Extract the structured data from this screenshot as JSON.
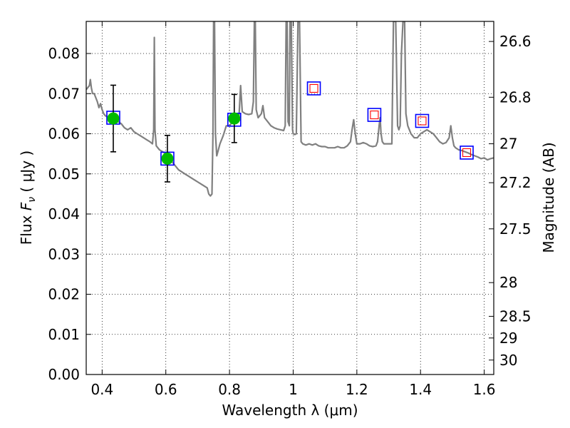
{
  "chart_data": {
    "type": "scatter",
    "title": "",
    "xlabel": "Wavelength  λ (μm)",
    "ylabel": "Flux  F_ν  ( μJy )",
    "ylabel_parts": {
      "prefix": "Flux  ",
      "symbol": "F",
      "subscript": "ν",
      "suffix": "  ( μJy )"
    },
    "ylabel_right": "Magnitude (AB)",
    "xlim": [
      0.35,
      1.63
    ],
    "ylim": [
      0.0,
      0.088
    ],
    "grid": true,
    "grid_style": "dotted",
    "x_ticks": [
      {
        "value": 0.4,
        "label": "0.4"
      },
      {
        "value": 0.6,
        "label": "0.6"
      },
      {
        "value": 0.8,
        "label": "0.8"
      },
      {
        "value": 1.0,
        "label": "1"
      },
      {
        "value": 1.2,
        "label": "1.2"
      },
      {
        "value": 1.4,
        "label": "1.4"
      },
      {
        "value": 1.6,
        "label": "1.6"
      }
    ],
    "y_ticks": [
      {
        "value": 0.0,
        "label": "0.00"
      },
      {
        "value": 0.01,
        "label": "0.01"
      },
      {
        "value": 0.02,
        "label": "0.02"
      },
      {
        "value": 0.03,
        "label": "0.03"
      },
      {
        "value": 0.04,
        "label": "0.04"
      },
      {
        "value": 0.05,
        "label": "0.05"
      },
      {
        "value": 0.06,
        "label": "0.06"
      },
      {
        "value": 0.07,
        "label": "0.07"
      },
      {
        "value": 0.08,
        "label": "0.08"
      }
    ],
    "right_ticks": [
      {
        "label": "26.6",
        "flux": 0.083
      },
      {
        "label": "26.8",
        "flux": 0.0691
      },
      {
        "label": "27",
        "flux": 0.0575
      },
      {
        "label": "27.2",
        "flux": 0.0478
      },
      {
        "label": "27.5",
        "flux": 0.0363
      },
      {
        "label": "28",
        "flux": 0.0229
      },
      {
        "label": "28.5",
        "flux": 0.0145
      },
      {
        "label": "29",
        "flux": 0.0091
      },
      {
        "label": "30",
        "flux": 0.0036
      }
    ],
    "series": [
      {
        "kind": "line",
        "color": "#808080",
        "points": [
          [
            0.35,
            0.071
          ],
          [
            0.355,
            0.0715
          ],
          [
            0.36,
            0.072
          ],
          [
            0.363,
            0.0735
          ],
          [
            0.366,
            0.0715
          ],
          [
            0.37,
            0.07
          ],
          [
            0.375,
            0.07
          ],
          [
            0.38,
            0.069
          ],
          [
            0.385,
            0.068
          ],
          [
            0.39,
            0.0665
          ],
          [
            0.395,
            0.0675
          ],
          [
            0.4,
            0.066
          ],
          [
            0.405,
            0.065
          ],
          [
            0.41,
            0.0645
          ],
          [
            0.42,
            0.064
          ],
          [
            0.43,
            0.0635
          ],
          [
            0.44,
            0.063
          ],
          [
            0.45,
            0.063
          ],
          [
            0.46,
            0.0625
          ],
          [
            0.47,
            0.0615
          ],
          [
            0.48,
            0.061
          ],
          [
            0.49,
            0.0615
          ],
          [
            0.5,
            0.0605
          ],
          [
            0.51,
            0.06
          ],
          [
            0.52,
            0.0595
          ],
          [
            0.53,
            0.059
          ],
          [
            0.54,
            0.0585
          ],
          [
            0.55,
            0.058
          ],
          [
            0.558,
            0.0575
          ],
          [
            0.562,
            0.061
          ],
          [
            0.564,
            0.084
          ],
          [
            0.566,
            0.061
          ],
          [
            0.57,
            0.057
          ],
          [
            0.58,
            0.056
          ],
          [
            0.59,
            0.0555
          ],
          [
            0.6,
            0.055
          ],
          [
            0.61,
            0.054
          ],
          [
            0.62,
            0.053
          ],
          [
            0.63,
            0.052
          ],
          [
            0.64,
            0.051
          ],
          [
            0.65,
            0.0505
          ],
          [
            0.66,
            0.05
          ],
          [
            0.67,
            0.0495
          ],
          [
            0.68,
            0.049
          ],
          [
            0.69,
            0.0485
          ],
          [
            0.7,
            0.048
          ],
          [
            0.71,
            0.0475
          ],
          [
            0.72,
            0.047
          ],
          [
            0.73,
            0.0465
          ],
          [
            0.735,
            0.045
          ],
          [
            0.74,
            0.0445
          ],
          [
            0.745,
            0.045
          ],
          [
            0.748,
            0.06
          ],
          [
            0.75,
            0.088
          ],
          [
            0.753,
            0.088
          ],
          [
            0.756,
            0.06
          ],
          [
            0.76,
            0.0545
          ],
          [
            0.765,
            0.056
          ],
          [
            0.77,
            0.0575
          ],
          [
            0.78,
            0.0595
          ],
          [
            0.79,
            0.062
          ],
          [
            0.8,
            0.062
          ],
          [
            0.81,
            0.063
          ],
          [
            0.82,
            0.0635
          ],
          [
            0.83,
            0.0645
          ],
          [
            0.835,
            0.072
          ],
          [
            0.84,
            0.0655
          ],
          [
            0.85,
            0.065
          ],
          [
            0.86,
            0.0648
          ],
          [
            0.87,
            0.065
          ],
          [
            0.875,
            0.068
          ],
          [
            0.878,
            0.088
          ],
          [
            0.881,
            0.088
          ],
          [
            0.884,
            0.066
          ],
          [
            0.89,
            0.064
          ],
          [
            0.9,
            0.065
          ],
          [
            0.905,
            0.067
          ],
          [
            0.91,
            0.064
          ],
          [
            0.92,
            0.063
          ],
          [
            0.93,
            0.062
          ],
          [
            0.94,
            0.0615
          ],
          [
            0.95,
            0.0612
          ],
          [
            0.96,
            0.061
          ],
          [
            0.97,
            0.0608
          ],
          [
            0.975,
            0.062
          ],
          [
            0.978,
            0.088
          ],
          [
            0.981,
            0.088
          ],
          [
            0.984,
            0.063
          ],
          [
            0.988,
            0.062
          ],
          [
            0.99,
            0.088
          ],
          [
            0.994,
            0.088
          ],
          [
            0.998,
            0.061
          ],
          [
            1.0,
            0.06
          ],
          [
            1.005,
            0.0598
          ],
          [
            1.01,
            0.06
          ],
          [
            1.015,
            0.088
          ],
          [
            1.02,
            0.088
          ],
          [
            1.025,
            0.058
          ],
          [
            1.03,
            0.0575
          ],
          [
            1.04,
            0.0572
          ],
          [
            1.05,
            0.0575
          ],
          [
            1.06,
            0.0572
          ],
          [
            1.07,
            0.0575
          ],
          [
            1.08,
            0.057
          ],
          [
            1.09,
            0.0568
          ],
          [
            1.1,
            0.0568
          ],
          [
            1.11,
            0.0565
          ],
          [
            1.12,
            0.0565
          ],
          [
            1.13,
            0.0565
          ],
          [
            1.14,
            0.0568
          ],
          [
            1.15,
            0.0565
          ],
          [
            1.16,
            0.0565
          ],
          [
            1.17,
            0.057
          ],
          [
            1.18,
            0.058
          ],
          [
            1.185,
            0.061
          ],
          [
            1.19,
            0.0635
          ],
          [
            1.195,
            0.06
          ],
          [
            1.2,
            0.0575
          ],
          [
            1.21,
            0.0575
          ],
          [
            1.22,
            0.0578
          ],
          [
            1.23,
            0.0575
          ],
          [
            1.24,
            0.057
          ],
          [
            1.25,
            0.0568
          ],
          [
            1.26,
            0.057
          ],
          [
            1.265,
            0.058
          ],
          [
            1.27,
            0.062
          ],
          [
            1.273,
            0.064
          ],
          [
            1.276,
            0.06
          ],
          [
            1.28,
            0.058
          ],
          [
            1.285,
            0.0575
          ],
          [
            1.3,
            0.0575
          ],
          [
            1.31,
            0.0575
          ],
          [
            1.315,
            0.088
          ],
          [
            1.322,
            0.088
          ],
          [
            1.328,
            0.062
          ],
          [
            1.332,
            0.061
          ],
          [
            1.336,
            0.062
          ],
          [
            1.34,
            0.08
          ],
          [
            1.345,
            0.088
          ],
          [
            1.35,
            0.088
          ],
          [
            1.354,
            0.065
          ],
          [
            1.36,
            0.062
          ],
          [
            1.37,
            0.06
          ],
          [
            1.38,
            0.059
          ],
          [
            1.39,
            0.059
          ],
          [
            1.4,
            0.06
          ],
          [
            1.41,
            0.0605
          ],
          [
            1.42,
            0.061
          ],
          [
            1.43,
            0.0605
          ],
          [
            1.44,
            0.06
          ],
          [
            1.45,
            0.059
          ],
          [
            1.46,
            0.058
          ],
          [
            1.47,
            0.0575
          ],
          [
            1.48,
            0.0578
          ],
          [
            1.49,
            0.059
          ],
          [
            1.495,
            0.062
          ],
          [
            1.5,
            0.059
          ],
          [
            1.505,
            0.057
          ],
          [
            1.51,
            0.0565
          ],
          [
            1.52,
            0.056
          ],
          [
            1.53,
            0.0558
          ],
          [
            1.54,
            0.0555
          ],
          [
            1.55,
            0.0552
          ],
          [
            1.56,
            0.0548
          ],
          [
            1.57,
            0.0545
          ],
          [
            1.58,
            0.0542
          ],
          [
            1.59,
            0.0538
          ],
          [
            1.6,
            0.054
          ],
          [
            1.61,
            0.0535
          ],
          [
            1.62,
            0.0538
          ],
          [
            1.63,
            0.054
          ]
        ]
      },
      {
        "kind": "model_points",
        "marker": "open-square",
        "color": "#0000ff",
        "points": [
          [
            0.435,
            0.064
          ],
          [
            0.605,
            0.0538
          ],
          [
            0.815,
            0.0635
          ],
          [
            1.065,
            0.0713
          ],
          [
            1.255,
            0.0647
          ],
          [
            1.405,
            0.0632
          ],
          [
            1.545,
            0.0553
          ]
        ]
      },
      {
        "kind": "upper_limits",
        "marker": "small-open-square",
        "color": "#ff0000",
        "points": [
          [
            1.065,
            0.0713
          ],
          [
            1.255,
            0.0647
          ],
          [
            1.405,
            0.0632
          ],
          [
            1.545,
            0.0553
          ]
        ]
      },
      {
        "kind": "detections",
        "marker": "filled-circle",
        "color": "#00bb00",
        "points": [
          {
            "x": 0.435,
            "y": 0.0638,
            "yerr": 0.0083
          },
          {
            "x": 0.605,
            "y": 0.0538,
            "yerr": 0.0058
          },
          {
            "x": 0.815,
            "y": 0.0638,
            "yerr": 0.006
          }
        ]
      }
    ]
  }
}
